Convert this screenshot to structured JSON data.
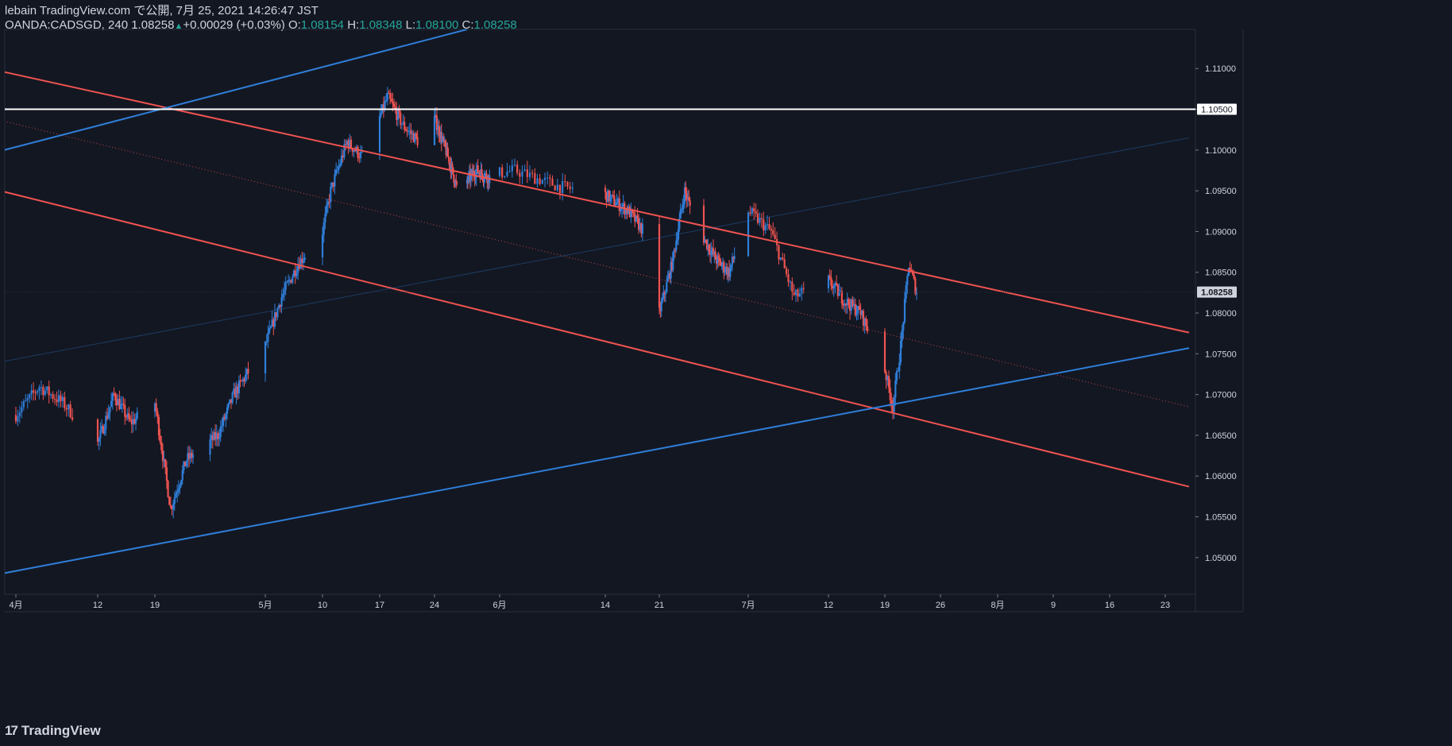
{
  "header": {
    "publish_line": "lebain TradingView.com で公開, 7月 25, 2021 14:26:47 JST",
    "symbol": "OANDA:CADSGD, 240",
    "last": "1.08258",
    "change": "+0.00029 (+0.03%)",
    "o_label": "O:",
    "o_val": "1.08154",
    "h_label": "H:",
    "h_val": "1.08348",
    "l_label": "L:",
    "l_val": "1.08100",
    "c_label": "C:",
    "c_val": "1.08258"
  },
  "brand": {
    "logo_icon": "tradingview-logo-icon",
    "text": "TradingView"
  },
  "colors": {
    "background": "#131722",
    "up": "#2f7ed8",
    "down": "#ef5350",
    "resistance_channel": "#ef5350",
    "support_channel": "#2f7ed8",
    "horizontal_level": "#ffffff",
    "grid": "#1e222d",
    "text": "#d1d4dc"
  },
  "chart_data": {
    "type": "candlestick",
    "symbol": "OANDA:CADSGD",
    "timeframe": "240",
    "x_axis": {
      "labels": [
        "4月",
        "12",
        "19",
        "5月",
        "10",
        "17",
        "24",
        "6月",
        "14",
        "21",
        "7月",
        "12",
        "19",
        "26",
        "8月",
        "9",
        "16",
        "23"
      ],
      "dates": [
        "2021-04-05",
        "2021-04-12",
        "2021-04-19",
        "2021-05-03",
        "2021-05-10",
        "2021-05-17",
        "2021-05-24",
        "2021-06-07",
        "2021-06-14",
        "2021-06-21",
        "2021-07-05",
        "2021-07-12",
        "2021-07-19",
        "2021-07-26",
        "2021-08-02",
        "2021-08-09",
        "2021-08-16",
        "2021-08-23"
      ]
    },
    "y_axis": {
      "labels": [
        "1.11000",
        "1.10500",
        "1.10000",
        "1.09500",
        "1.09000",
        "1.08500",
        "1.08000",
        "1.07500",
        "1.07000",
        "1.06500",
        "1.06000",
        "1.05500",
        "1.05000"
      ],
      "range": [
        1.0455,
        1.1148
      ]
    },
    "price_path": [
      [
        "2021-04-05",
        1.0675
      ],
      [
        "2021-04-07",
        1.071
      ],
      [
        "2021-04-09",
        1.069
      ],
      [
        "2021-04-12",
        1.064
      ],
      [
        "2021-04-14",
        1.07
      ],
      [
        "2021-04-16",
        1.0665
      ],
      [
        "2021-04-19",
        1.069
      ],
      [
        "2021-04-21",
        1.056
      ],
      [
        "2021-04-23",
        1.062
      ],
      [
        "2021-04-27",
        1.065
      ],
      [
        "2021-04-29",
        1.07
      ],
      [
        "2021-05-03",
        1.076
      ],
      [
        "2021-05-05",
        1.082
      ],
      [
        "2021-05-07",
        1.086
      ],
      [
        "2021-05-10",
        1.09
      ],
      [
        "2021-05-11",
        1.095
      ],
      [
        "2021-05-13",
        1.101
      ],
      [
        "2021-05-15",
        1.099
      ],
      [
        "2021-05-18",
        1.1065
      ],
      [
        "2021-05-20",
        1.103
      ],
      [
        "2021-05-22",
        1.101
      ],
      [
        "2021-05-24",
        1.104
      ],
      [
        "2021-05-27",
        1.099
      ],
      [
        "2021-05-29",
        1.095
      ],
      [
        "2021-06-02",
        1.0975
      ],
      [
        "2021-06-05",
        1.0965
      ],
      [
        "2021-06-08",
        1.0975
      ],
      [
        "2021-06-11",
        1.0955
      ],
      [
        "2021-06-14",
        1.0945
      ],
      [
        "2021-06-17",
        1.0925
      ],
      [
        "2021-06-19",
        1.09
      ],
      [
        "2021-06-21",
        1.08
      ],
      [
        "2021-06-23",
        1.086
      ],
      [
        "2021-06-25",
        1.095
      ],
      [
        "2021-06-27",
        1.0905
      ],
      [
        "2021-06-30",
        1.0865
      ],
      [
        "2021-07-02",
        1.085
      ],
      [
        "2021-07-05",
        1.0925
      ],
      [
        "2021-07-07",
        1.09
      ],
      [
        "2021-07-09",
        1.082
      ],
      [
        "2021-07-12",
        1.084
      ],
      [
        "2021-07-14",
        1.0815
      ],
      [
        "2021-07-16",
        1.08
      ],
      [
        "2021-07-19",
        1.073
      ],
      [
        "2021-07-20",
        1.0685
      ],
      [
        "2021-07-21",
        1.076
      ],
      [
        "2021-07-22",
        1.086
      ],
      [
        "2021-07-23",
        1.0826
      ]
    ],
    "last_price": 1.08258,
    "levels": [
      {
        "name": "horizontal-resistance",
        "price": 1.105
      }
    ],
    "trendlines": [
      {
        "name": "descending-channel-upper",
        "color": "#ef5350",
        "p1": [
          "2021-03-17",
          1.11525
        ],
        "p2": [
          "2021-08-26",
          1.0776
        ]
      },
      {
        "name": "descending-channel-lower",
        "color": "#ef5350",
        "p1": [
          "2021-03-17",
          1.1013
        ],
        "p2": [
          "2021-08-26",
          1.0587
        ]
      },
      {
        "name": "descending-channel-mid",
        "color": "#ef5350",
        "dotted": true,
        "p1": [
          "2021-03-17",
          1.10975
        ],
        "p2": [
          "2021-08-26",
          1.0685
        ]
      },
      {
        "name": "ascending-channel-upper",
        "color": "#2f7ed8",
        "p1": [
          "2021-03-31",
          1.0985
        ],
        "p2": [
          "2021-05-31",
          1.1148
        ]
      },
      {
        "name": "ascending-channel-lower",
        "color": "#2f7ed8",
        "p1": [
          "2021-03-31",
          1.047
        ],
        "p2": [
          "2021-08-26",
          1.0757
        ]
      },
      {
        "name": "ascending-channel-mid",
        "color": "#2f7ed8",
        "faint": true,
        "p1": [
          "2021-03-31",
          1.073
        ],
        "p2": [
          "2021-08-26",
          1.1015
        ]
      }
    ]
  }
}
